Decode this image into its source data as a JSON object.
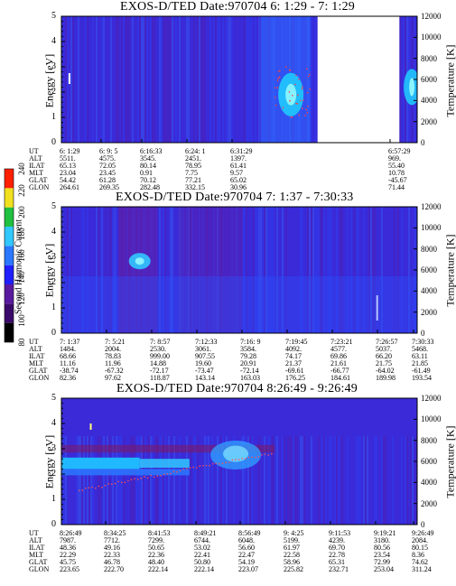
{
  "chart_data": [
    {
      "type": "heatmap",
      "title": "EXOS-D/TED   Date:970704  6: 1:29 - 7: 1:29",
      "ylabel": "Energy [eV]",
      "ylabel_right": "Temperature [K]",
      "ylim": [
        0,
        5
      ],
      "ylim_right": [
        0,
        12000
      ],
      "yticks": [
        "0",
        "1",
        "2",
        "3",
        "4",
        "5"
      ],
      "yticks_right": [
        "0",
        "2000",
        "4000",
        "6000",
        "8000",
        "10000",
        "12000"
      ],
      "ephemeris_labels": [
        "UT",
        "ALT",
        "ILAT",
        "MLT",
        "GLAT",
        "GLON"
      ],
      "ephemeris": [
        [
          "6: 1:29",
          "5511.",
          "65.13",
          "23.04",
          "54.42",
          "264.61"
        ],
        [
          "6: 9: 5",
          "4575.",
          "72.05",
          "23.45",
          "61.28",
          "269.35"
        ],
        [
          "6:16:33",
          "3545.",
          "80.14",
          "0.91",
          "70.12",
          "282.48"
        ],
        [
          "6:24: 1",
          "2451.",
          "78.95",
          "7.75",
          "77.21",
          "332.15"
        ],
        [
          "6:31:29",
          "1397.",
          "61.41",
          "9.57",
          "65.02",
          "30.96"
        ],
        [
          "",
          "",
          "",
          "",
          "",
          ""
        ],
        [
          "",
          "",
          "",
          "",
          "",
          ""
        ],
        [
          "",
          "",
          "",
          "",
          "",
          ""
        ],
        [
          "6:57:29",
          "969.",
          "55.40",
          "10.78",
          "-45.67",
          "71.44"
        ]
      ],
      "data_gaps": [
        [
          0.72,
          0.95
        ]
      ]
    },
    {
      "type": "heatmap",
      "title": "EXOS-D/TED   Date:970704  7: 1:37 - 7:30:33",
      "ylabel": "Energy [eV]",
      "ylabel_right": "Temperature [K]",
      "ylim": [
        0,
        5
      ],
      "ylim_right": [
        0,
        12000
      ],
      "yticks": [
        "0",
        "1",
        "2",
        "3",
        "4",
        "5"
      ],
      "yticks_right": [
        "0",
        "2000",
        "4000",
        "6000",
        "8000",
        "10000",
        "12000"
      ],
      "ephemeris_labels": [
        "UT",
        "ALT",
        "ILAT",
        "MLT",
        "GLAT",
        "GLON"
      ],
      "ephemeris": [
        [
          "7: 1:37",
          "1484.",
          "68.66",
          "11.16",
          "-38.74",
          "82.36"
        ],
        [
          "7: 5:21",
          "2004.",
          "78.83",
          "11.96",
          "-67.32",
          "97.62"
        ],
        [
          "7: 8:57",
          "2530.",
          "999.00",
          "14.88",
          "-72.17",
          "118.87"
        ],
        [
          "7:12:33",
          "3061.",
          "907.55",
          "19.60",
          "-73.47",
          "143.14"
        ],
        [
          "7:16: 9",
          "3584.",
          "79.28",
          "20.91",
          "-72.14",
          "163.03"
        ],
        [
          "7:19:45",
          "4092.",
          "74.17",
          "21.37",
          "-69.61",
          "176.25"
        ],
        [
          "7:23:21",
          "4577.",
          "69.86",
          "21.61",
          "-66.77",
          "184.61"
        ],
        [
          "7:26:57",
          "5037.",
          "66.20",
          "21.75",
          "-64.02",
          "189.98"
        ],
        [
          "7:30:33",
          "5468.",
          "63.11",
          "21.85",
          "-61.49",
          "193.54"
        ]
      ]
    },
    {
      "type": "heatmap",
      "title": "EXOS-D/TED   Date:970704  8:26:49 - 9:26:49",
      "ylabel": "Energy [eV]",
      "ylabel_right": "Temperature [K]",
      "ylim": [
        0,
        5
      ],
      "ylim_right": [
        0,
        12000
      ],
      "yticks": [
        "0",
        "1",
        "2",
        "3",
        "4",
        "5"
      ],
      "yticks_right": [
        "0",
        "2000",
        "4000",
        "6000",
        "8000",
        "10000",
        "12000"
      ],
      "ephemeris_labels": [
        "UT",
        "ALT",
        "ILAT",
        "MLT",
        "GLAT",
        "GLON"
      ],
      "ephemeris": [
        [
          "8:26:49",
          "7987.",
          "48.36",
          "22.29",
          "45.75",
          "223.65"
        ],
        [
          "8:34:25",
          "7712.",
          "49.16",
          "22.33",
          "46.78",
          "222.70"
        ],
        [
          "8:41:53",
          "7299.",
          "50.65",
          "22.36",
          "48.40",
          "222.14"
        ],
        [
          "8:49:21",
          "6744.",
          "53.02",
          "22.41",
          "50.80",
          "222.14"
        ],
        [
          "8:56:49",
          "6048.",
          "56.60",
          "22.47",
          "54.19",
          "223.07"
        ],
        [
          "9: 4:25",
          "5199.",
          "61.97",
          "22.58",
          "58.96",
          "225.82"
        ],
        [
          "9:11:53",
          "4239.",
          "69.70",
          "22.78",
          "65.31",
          "232.71"
        ],
        [
          "9:19:21",
          "3180.",
          "80.56",
          "23.54",
          "72.99",
          "253.04"
        ],
        [
          "9:26:49",
          "2084.",
          "80.15",
          "8.36",
          "74.62",
          "311.24"
        ]
      ]
    }
  ],
  "colorbar": {
    "label": "Second Harmonic Current",
    "ticks": [
      "80",
      "100",
      "120",
      "140",
      "160",
      "180",
      "200",
      "220",
      "240"
    ],
    "colors": [
      "#000000",
      "#3a0a6a",
      "#5a1aa0",
      "#2020ff",
      "#2a78ff",
      "#30c8ff",
      "#20c040",
      "#f0e020",
      "#ff2000"
    ]
  }
}
